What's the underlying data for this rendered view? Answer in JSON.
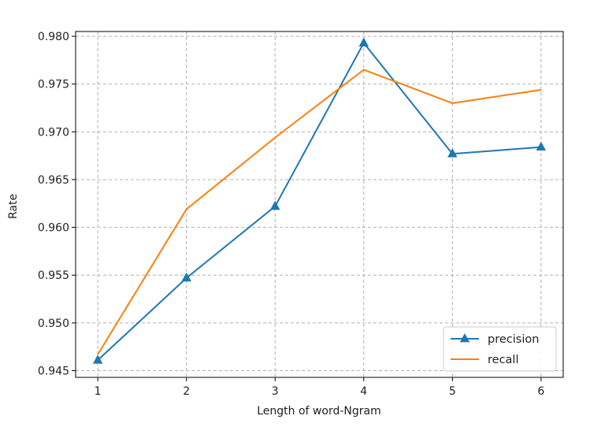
{
  "chart_data": {
    "type": "line",
    "xlabel": "Length of word-Ngram",
    "ylabel": "Rate",
    "x": [
      1,
      2,
      3,
      4,
      5,
      6
    ],
    "xticks": [
      "1",
      "2",
      "3",
      "4",
      "5",
      "6"
    ],
    "xlim": [
      0.75,
      6.25
    ],
    "ylim": [
      0.9443,
      0.9805
    ],
    "yticks": [
      "0.945",
      "0.950",
      "0.955",
      "0.960",
      "0.965",
      "0.970",
      "0.975",
      "0.980"
    ],
    "grid": true,
    "legend_position": "lower-right",
    "series": [
      {
        "name": "precision",
        "marker": "triangle",
        "color": "#1f77b4",
        "values": [
          0.9461,
          0.9547,
          0.9622,
          0.9793,
          0.9677,
          0.9684
        ]
      },
      {
        "name": "recall",
        "marker": "none",
        "color": "#ff7f0e",
        "values": [
          0.9467,
          0.9619,
          0.9694,
          0.9765,
          0.973,
          0.9744
        ]
      }
    ]
  }
}
